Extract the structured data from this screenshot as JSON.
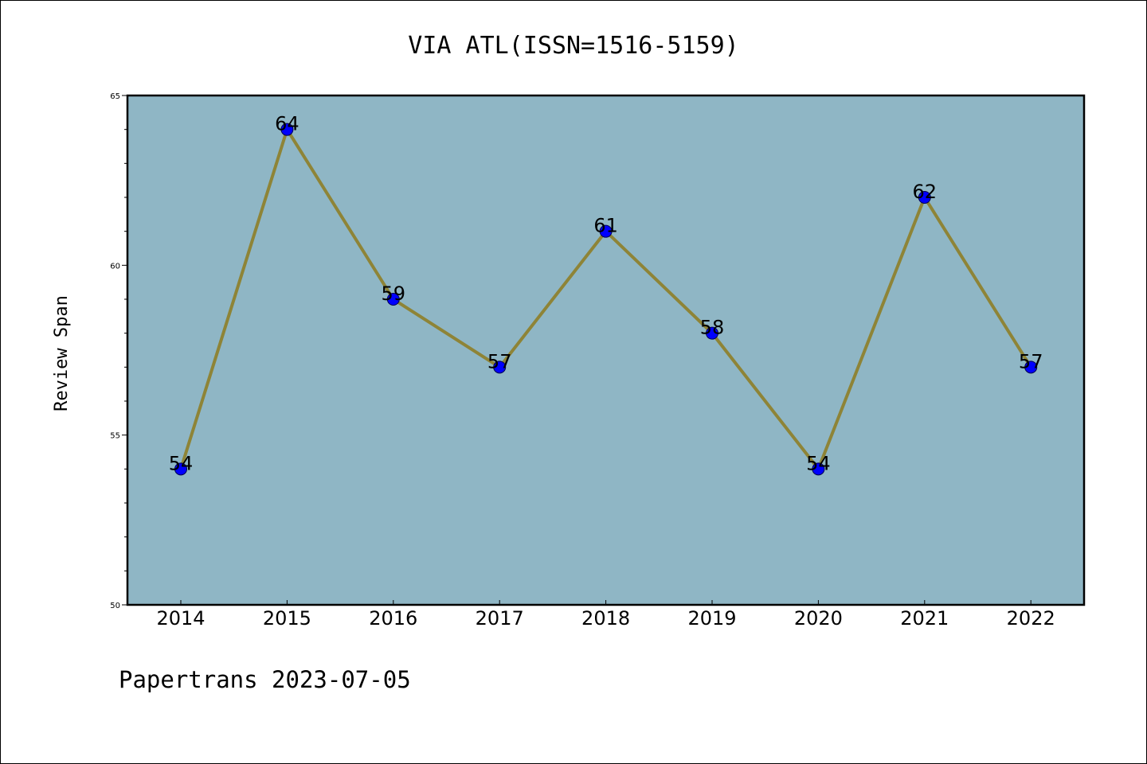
{
  "chart_data": {
    "type": "line",
    "title": "VIA ATL(ISSN=1516-5159)",
    "xlabel": "",
    "ylabel": "Review Span",
    "categories": [
      "2014",
      "2015",
      "2016",
      "2017",
      "2018",
      "2019",
      "2020",
      "2021",
      "2022"
    ],
    "values": [
      54,
      64,
      59,
      57,
      61,
      58,
      54,
      62,
      57
    ],
    "ylim": [
      50,
      65
    ],
    "yticks": [
      50,
      55,
      60,
      65
    ],
    "grid": false,
    "legend": "none",
    "colors": {
      "plot_background": "#8fb6c5",
      "line": "#8e8437",
      "marker": "#0000ff"
    }
  },
  "footer": "Papertrans 2023-07-05"
}
